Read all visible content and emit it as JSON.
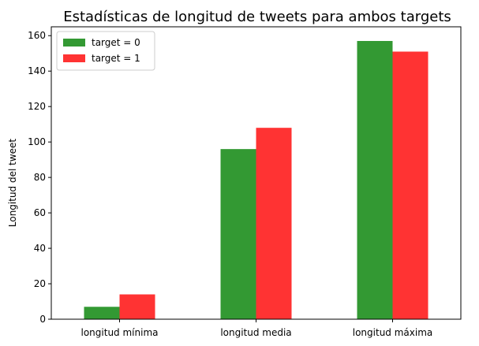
{
  "chart_data": {
    "type": "bar",
    "title": "Estadísticas de longitud de tweets para ambos targets",
    "xlabel": "",
    "ylabel": "Longitud del tweet",
    "categories": [
      "longitud mínima",
      "longitud media",
      "longitud máxima"
    ],
    "series": [
      {
        "name": "target = 0",
        "color": "#339933",
        "values": [
          7,
          96,
          157
        ]
      },
      {
        "name": "target = 1",
        "color": "#ff3333",
        "values": [
          14,
          108,
          151
        ]
      }
    ],
    "ylim": [
      0,
      165
    ],
    "yticks": [
      0,
      20,
      40,
      60,
      80,
      100,
      120,
      140,
      160
    ],
    "grid": false,
    "legend_position": "top-left"
  }
}
